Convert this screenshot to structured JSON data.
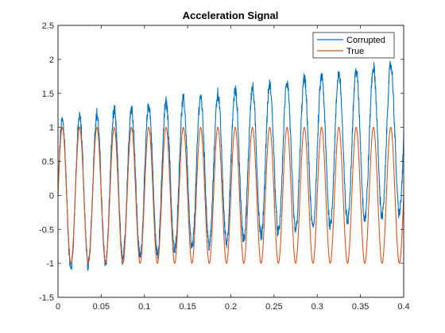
{
  "chart_data": {
    "type": "line",
    "title": "Acceleration Signal",
    "xlabel": "",
    "ylabel": "",
    "xlim": [
      0,
      0.4
    ],
    "ylim": [
      -1.5,
      2.5
    ],
    "x_ticks": [
      0,
      0.05,
      0.1,
      0.15,
      0.2,
      0.25,
      0.3,
      0.35,
      0.4
    ],
    "x_tick_labels": [
      "0",
      "0.05",
      "0.1",
      "0.15",
      "0.2",
      "0.25",
      "0.3",
      "0.35",
      "0.4"
    ],
    "y_ticks": [
      -1.5,
      -1,
      -0.5,
      0,
      0.5,
      1,
      1.5,
      2,
      2.5
    ],
    "y_tick_labels": [
      "-1.5",
      "-1",
      "-0.5",
      "0",
      "0.5",
      "1",
      "1.5",
      "2",
      "2.5"
    ],
    "grid": false,
    "legend_position": "top-right",
    "series": [
      {
        "name": "Corrupted",
        "color": "#0072BD",
        "description_values": {
          "frequency_hz": 50,
          "offset_start": 0.0,
          "offset_end": 0.85,
          "amplitude_start": 1.1,
          "amplitude_end": 1.1,
          "noise": 0.08
        }
      },
      {
        "name": "True",
        "color": "#D95319",
        "description_values": {
          "frequency_hz": 50,
          "amplitude": 1.0,
          "offset": 0
        }
      }
    ]
  }
}
